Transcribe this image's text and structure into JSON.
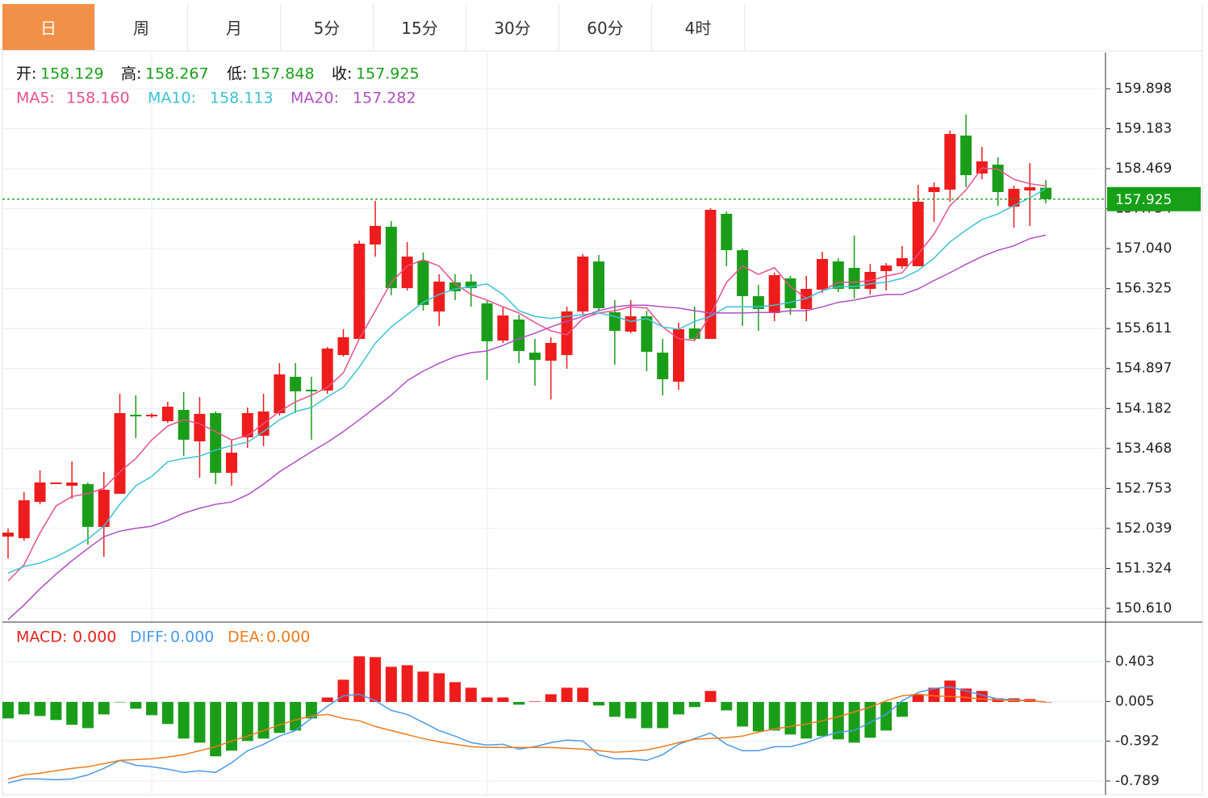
{
  "tabs": {
    "items": [
      "日",
      "周",
      "月",
      "5分",
      "15分",
      "30分",
      "60分",
      "4时"
    ],
    "active": 0
  },
  "chart_data": [
    {
      "type": "candlestick",
      "ohlc_labels": [
        "开:",
        "高:",
        "低:",
        "收:"
      ],
      "up_color": "#ee1c1c",
      "down_color": "#1a9e1a",
      "value_color": "#17a017",
      "candles": {
        "open": [
          151.893,
          151.865,
          152.514,
          152.831,
          152.802,
          152.831,
          152.066,
          152.658,
          154.071,
          154.042,
          153.956,
          154.158,
          153.595,
          154.1,
          153.033,
          153.667,
          153.696,
          154.1,
          154.749,
          154.518,
          154.504,
          155.138,
          155.427,
          157.114,
          157.431,
          156.335,
          156.826,
          155.917,
          156.436,
          156.451,
          156.061,
          155.398,
          155.773,
          155.181,
          155.037,
          155.138,
          155.917,
          156.811,
          155.903,
          155.557,
          155.831,
          155.181,
          154.662,
          155.614,
          155.427,
          157.662,
          157.013,
          156.191,
          155.888,
          156.508,
          155.96,
          156.307,
          156.811,
          156.696,
          156.321,
          156.638,
          156.725,
          156.725,
          158.052,
          158.095,
          159.061,
          158.383,
          158.542,
          157.792,
          158.08,
          158.129
        ],
        "high": [
          152.038,
          152.687,
          153.076,
          152.86,
          153.235,
          152.86,
          153.047,
          154.446,
          154.417,
          154.1,
          154.302,
          154.475,
          154.388,
          154.129,
          153.624,
          154.201,
          154.446,
          154.994,
          154.994,
          154.749,
          155.283,
          155.6,
          157.186,
          157.893,
          157.532,
          157.157,
          156.97,
          156.581,
          156.581,
          156.581,
          156.119,
          156.004,
          155.859,
          155.427,
          155.456,
          156.004,
          156.941,
          156.927,
          156.119,
          156.119,
          155.932,
          155.427,
          155.715,
          156.004,
          157.763,
          157.705,
          157.042,
          156.393,
          156.609,
          156.552,
          156.552,
          156.984,
          156.869,
          157.273,
          156.768,
          156.782,
          157.085,
          158.181,
          158.225,
          159.148,
          159.436,
          158.859,
          158.672,
          158.167,
          158.571,
          158.267
        ],
        "low": [
          151.504,
          151.821,
          152.47,
          152.831,
          152.571,
          151.749,
          151.533,
          152.658,
          153.653,
          154.013,
          153.927,
          153.336,
          152.946,
          152.831,
          152.802,
          153.48,
          153.509,
          154.057,
          154.1,
          153.624,
          154.446,
          155.109,
          155.427,
          156.898,
          156.206,
          156.292,
          155.932,
          155.658,
          156.119,
          156.004,
          154.691,
          155.355,
          154.994,
          154.59,
          154.345,
          154.893,
          155.859,
          155.917,
          154.965,
          155.528,
          154.85,
          154.417,
          154.518,
          155.398,
          155.427,
          156.725,
          155.658,
          155.571,
          155.744,
          155.859,
          155.744,
          156.249,
          156.263,
          156.148,
          156.22,
          156.292,
          156.681,
          156.725,
          157.518,
          157.878,
          158.138,
          158.282,
          157.806,
          157.417,
          157.446,
          157.848
        ],
        "close": [
          151.965,
          152.542,
          152.86,
          152.86,
          152.86,
          152.066,
          152.73,
          154.1,
          154.042,
          154.071,
          154.215,
          153.624,
          154.086,
          153.033,
          153.393,
          154.1,
          154.129,
          154.792,
          154.489,
          154.489,
          155.254,
          155.456,
          157.129,
          157.446,
          156.335,
          156.898,
          156.033,
          156.451,
          156.278,
          156.335,
          155.384,
          155.845,
          155.21,
          155.052,
          155.355,
          155.917,
          156.898,
          155.975,
          155.571,
          155.831,
          155.196,
          154.706,
          155.6,
          155.427,
          157.734,
          157.013,
          156.191,
          155.96,
          156.566,
          155.975,
          156.321,
          156.855,
          156.321,
          156.321,
          156.624,
          156.739,
          156.869,
          157.878,
          158.138,
          159.09,
          158.354,
          158.6,
          158.052,
          158.109,
          158.138,
          157.925
        ]
      },
      "series": [
        {
          "name": "MA5:",
          "color": "#e8508a",
          "legend_label": "158.160",
          "values": [
            151.1,
            151.39,
            151.96,
            152.44,
            152.61,
            152.66,
            152.76,
            153.05,
            153.29,
            153.62,
            153.87,
            153.98,
            153.91,
            153.77,
            153.62,
            153.7,
            153.91,
            154.13,
            154.3,
            154.42,
            154.56,
            154.82,
            155.43,
            155.93,
            156.44,
            156.73,
            156.84,
            156.73,
            156.41,
            156.22,
            156.12,
            156.0,
            155.89,
            155.72,
            155.57,
            155.5,
            155.79,
            155.89,
            155.93,
            156.0,
            155.98,
            155.64,
            155.43,
            155.4,
            155.86,
            156.44,
            156.73,
            156.58,
            156.7,
            156.36,
            156.15,
            156.29,
            156.44,
            156.44,
            156.47,
            156.55,
            156.61,
            156.94,
            157.3,
            157.81,
            158.09,
            158.48,
            158.46,
            158.28,
            158.2,
            158.16
          ]
        },
        {
          "name": "MA10:",
          "color": "#3cc3d6",
          "legend_label": "158.113",
          "values": [
            151.24,
            151.36,
            151.42,
            151.53,
            151.68,
            151.85,
            152.08,
            152.47,
            152.8,
            152.97,
            153.23,
            153.29,
            153.33,
            153.44,
            153.52,
            153.58,
            153.77,
            153.98,
            154.13,
            154.2,
            154.39,
            154.56,
            154.92,
            155.35,
            155.64,
            155.86,
            156.08,
            156.22,
            156.32,
            156.36,
            156.41,
            156.22,
            155.93,
            155.83,
            155.79,
            155.83,
            155.86,
            155.89,
            155.83,
            155.74,
            155.79,
            155.64,
            155.6,
            155.74,
            155.83,
            156.0,
            156.0,
            156.0,
            156.03,
            156.08,
            156.15,
            156.29,
            156.36,
            156.36,
            156.41,
            156.44,
            156.51,
            156.65,
            156.87,
            157.16,
            157.37,
            157.56,
            157.66,
            157.81,
            157.95,
            158.113
          ]
        },
        {
          "name": "MA20:",
          "color": "#b14ec4",
          "legend_label": "157.282",
          "values": [
            150.41,
            150.67,
            150.96,
            151.22,
            151.46,
            151.68,
            151.89,
            151.99,
            152.04,
            152.08,
            152.18,
            152.31,
            152.4,
            152.47,
            152.51,
            152.64,
            152.83,
            153.05,
            153.23,
            153.41,
            153.58,
            153.77,
            153.98,
            154.2,
            154.42,
            154.68,
            154.85,
            154.99,
            155.11,
            155.18,
            155.21,
            155.31,
            155.43,
            155.53,
            155.64,
            155.74,
            155.83,
            155.93,
            156.0,
            156.03,
            156.03,
            156.0,
            155.98,
            155.93,
            155.89,
            155.89,
            155.89,
            155.9,
            155.9,
            155.93,
            155.93,
            156.0,
            156.08,
            156.12,
            156.18,
            156.22,
            156.22,
            156.32,
            156.47,
            156.61,
            156.76,
            156.9,
            157.01,
            157.09,
            157.22,
            157.282
          ]
        }
      ],
      "ylim": [
        150.379,
        160.547
      ],
      "yticks": [
        {
          "value": 150.61,
          "label": "150.610"
        },
        151.324,
        152.039,
        152.753,
        153.468,
        154.182,
        154.897,
        155.611,
        156.325,
        {
          "value": 157.04,
          "label": "157.040"
        },
        157.754,
        158.469,
        159.183,
        159.898
      ],
      "grid": true
    },
    {
      "type": "macd",
      "series": [
        {
          "name": "MACD:",
          "color": "#e0241b",
          "legend_label": "0.000",
          "values": [
            -0.164,
            -0.124,
            -0.14,
            -0.18,
            -0.228,
            -0.261,
            -0.124,
            -0.003,
            -0.067,
            -0.132,
            -0.22,
            -0.365,
            -0.406,
            -0.542,
            -0.486,
            -0.389,
            -0.365,
            -0.309,
            -0.285,
            -0.164,
            0.045,
            0.222,
            0.456,
            0.448,
            0.351,
            0.367,
            0.303,
            0.287,
            0.198,
            0.142,
            0.045,
            0.045,
            -0.027,
            0.005,
            0.077,
            0.142,
            0.142,
            -0.035,
            -0.148,
            -0.164,
            -0.261,
            -0.261,
            -0.124,
            -0.051,
            0.11,
            -0.084,
            -0.245,
            -0.293,
            -0.285,
            -0.325,
            -0.365,
            -0.341,
            -0.373,
            -0.406,
            -0.357,
            -0.285,
            -0.148,
            0.077,
            0.142,
            0.214,
            0.134,
            0.11,
            0.037,
            0.037,
            0.029,
            0
          ]
        },
        {
          "name": "DIFF:",
          "color": "#4a9ae8",
          "legend_label": "0.000",
          "values": [
            -0.808,
            -0.768,
            -0.768,
            -0.776,
            -0.768,
            -0.728,
            -0.663,
            -0.583,
            -0.631,
            -0.647,
            -0.671,
            -0.703,
            -0.687,
            -0.703,
            -0.607,
            -0.486,
            -0.422,
            -0.341,
            -0.285,
            -0.164,
            -0.043,
            0.061,
            0.077,
            0.013,
            -0.084,
            -0.124,
            -0.204,
            -0.285,
            -0.341,
            -0.406,
            -0.43,
            -0.422,
            -0.47,
            -0.446,
            -0.406,
            -0.381,
            -0.389,
            -0.526,
            -0.567,
            -0.567,
            -0.583,
            -0.526,
            -0.422,
            -0.365,
            -0.309,
            -0.422,
            -0.486,
            -0.486,
            -0.446,
            -0.446,
            -0.406,
            -0.349,
            -0.301,
            -0.285,
            -0.204,
            -0.124,
            0.013,
            0.094,
            0.134,
            0.15,
            0.11,
            0.069,
            0.029,
            0.021,
            0.013,
            0
          ]
        },
        {
          "name": "DEA:",
          "color": "#f07a1a",
          "legend_label": "0.000",
          "values": [
            -0.768,
            -0.728,
            -0.711,
            -0.687,
            -0.663,
            -0.647,
            -0.615,
            -0.583,
            -0.575,
            -0.567,
            -0.55,
            -0.526,
            -0.486,
            -0.446,
            -0.389,
            -0.341,
            -0.285,
            -0.228,
            -0.18,
            -0.14,
            -0.124,
            -0.164,
            -0.188,
            -0.245,
            -0.285,
            -0.325,
            -0.365,
            -0.398,
            -0.422,
            -0.446,
            -0.454,
            -0.454,
            -0.454,
            -0.454,
            -0.454,
            -0.462,
            -0.47,
            -0.486,
            -0.502,
            -0.494,
            -0.478,
            -0.446,
            -0.406,
            -0.373,
            -0.365,
            -0.357,
            -0.341,
            -0.301,
            -0.269,
            -0.245,
            -0.22,
            -0.188,
            -0.148,
            -0.1,
            -0.051,
            0.013,
            0.061,
            0.077,
            0.061,
            0.053,
            0.045,
            0.029,
            0.021,
            0.013,
            0.013,
            0
          ]
        }
      ],
      "up_color": "#ee1c1c",
      "down_color": "#1a9e1a",
      "ylim": [
        -0.926,
        0.789
      ],
      "yticks": [
        -0.789,
        -0.392,
        0.005,
        0.403
      ],
      "grid": true
    }
  ]
}
